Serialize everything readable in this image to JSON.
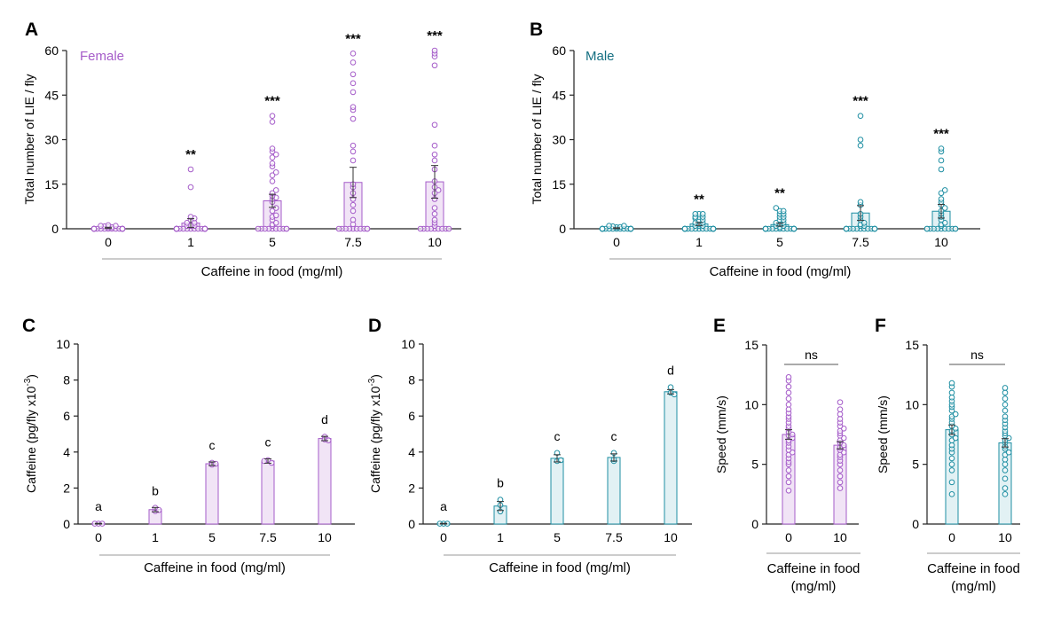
{
  "colors": {
    "female": "#a55cc9",
    "female_fill": "#f1e4f6",
    "male": "#1f8fa3",
    "male_fill": "#e2f1f4",
    "male_label": "#156f82",
    "axis": "#222222"
  },
  "chart_data": [
    {
      "panel": "A",
      "type": "bar",
      "sex": "female",
      "inset_label": "Female",
      "categories": [
        "0",
        "1",
        "5",
        "7.5",
        "10"
      ],
      "values": [
        0.3,
        1.9,
        9.4,
        15.6,
        15.8
      ],
      "sem": [
        0.2,
        1.5,
        2.2,
        5.1,
        5.5
      ],
      "significance": [
        "",
        "**",
        "***",
        "***",
        "***"
      ],
      "points": [
        [
          0,
          0,
          0,
          0,
          0,
          0,
          0,
          0,
          0,
          0,
          0,
          0,
          0,
          0,
          0,
          0,
          0,
          0,
          0,
          0,
          0.5,
          0.5,
          0.8,
          1,
          1,
          1.2
        ],
        [
          0,
          0,
          0,
          0,
          0,
          0,
          0,
          0,
          0,
          0,
          0,
          0,
          0,
          0,
          0,
          0,
          0,
          0,
          0,
          0,
          0,
          0,
          0,
          0,
          0,
          0,
          1,
          1,
          1,
          1.2,
          2,
          2,
          3,
          3.5,
          4,
          14,
          20
        ],
        [
          0,
          0,
          0,
          0,
          0,
          0,
          0,
          0,
          0,
          0,
          1,
          1.5,
          2,
          3,
          4,
          4.5,
          6,
          7,
          9,
          10,
          10.5,
          11,
          12,
          13,
          16,
          18,
          19,
          21,
          22,
          24,
          25,
          26,
          27,
          36,
          38
        ],
        [
          0,
          0,
          0,
          0,
          0,
          0,
          0,
          0,
          0,
          0,
          1.5,
          3,
          6,
          8,
          10,
          12,
          14,
          15,
          23,
          26,
          28,
          37,
          40,
          41,
          46,
          49,
          52,
          56,
          59
        ],
        [
          0,
          0,
          0,
          0,
          0,
          0,
          0,
          0,
          0,
          1,
          2,
          3,
          5,
          7,
          10,
          12,
          13,
          14,
          16,
          20,
          23,
          25,
          28,
          35,
          55,
          58,
          59,
          60
        ]
      ],
      "xlabel": "Caffeine in food (mg/ml)",
      "ylabel": "Total number of LIE / fly",
      "ylim": [
        0,
        60
      ],
      "yticks": [
        "0",
        "15",
        "30",
        "45",
        "60"
      ]
    },
    {
      "panel": "B",
      "type": "bar",
      "sex": "male",
      "inset_label": "Male",
      "categories": [
        "0",
        "1",
        "5",
        "7.5",
        "10"
      ],
      "values": [
        0.2,
        1.6,
        1.4,
        5.3,
        5.9
      ],
      "sem": [
        0.15,
        0.5,
        0.5,
        2.5,
        2.3
      ],
      "significance": [
        "",
        "**",
        "**",
        "***",
        "***"
      ],
      "points": [
        [
          0,
          0,
          0,
          0,
          0,
          0,
          0,
          0,
          0,
          0,
          0,
          0,
          0,
          0,
          0,
          0,
          0,
          0,
          0,
          0,
          0.5,
          0.6,
          0.8,
          1,
          1
        ],
        [
          0,
          0,
          0,
          0,
          0,
          0,
          0,
          0,
          0,
          0,
          0,
          0,
          0,
          0,
          0,
          0,
          0,
          0,
          0,
          0,
          1,
          1,
          1,
          1.5,
          2,
          2,
          3,
          3,
          3.5,
          4,
          4,
          4,
          5,
          5,
          5
        ],
        [
          0,
          0,
          0,
          0,
          0,
          0,
          0,
          0,
          0,
          0,
          0,
          0,
          0,
          0,
          0,
          0,
          0,
          0,
          0,
          0,
          0.5,
          1,
          1,
          1.5,
          2,
          2,
          3,
          3,
          4,
          4,
          5,
          5,
          6,
          6,
          7
        ],
        [
          0,
          0,
          0,
          0,
          0,
          0,
          0,
          0,
          0,
          0,
          0,
          0,
          0,
          0,
          0,
          1,
          1,
          1.5,
          2,
          3,
          4,
          5,
          8,
          9,
          28,
          30,
          38
        ],
        [
          0,
          0,
          0,
          0,
          0,
          0,
          0,
          0,
          0,
          0,
          0,
          1,
          1.5,
          2,
          3,
          4,
          5,
          6,
          7,
          8,
          9,
          10,
          12,
          13,
          20,
          23,
          26,
          27
        ]
      ],
      "xlabel": "Caffeine in food (mg/ml)",
      "ylabel": "Total number of LIE / fly",
      "ylim": [
        0,
        60
      ],
      "yticks": [
        "0",
        "15",
        "30",
        "45",
        "60"
      ]
    },
    {
      "panel": "C",
      "type": "bar",
      "sex": "female",
      "categories": [
        "0",
        "1",
        "5",
        "7.5",
        "10"
      ],
      "values": [
        0.02,
        0.8,
        3.35,
        3.5,
        4.75
      ],
      "sem": [
        0.02,
        0.12,
        0.1,
        0.12,
        0.12
      ],
      "letters": [
        "a",
        "b",
        "c",
        "c",
        "d"
      ],
      "points": [
        [
          0.02,
          0.02,
          0.02
        ],
        [
          0.72,
          0.9,
          0.78
        ],
        [
          3.4,
          3.3,
          3.35
        ],
        [
          3.55,
          3.4,
          3.5
        ],
        [
          4.85,
          4.7,
          4.65
        ]
      ],
      "xlabel": "Caffeine in food (mg/ml)",
      "ylabel": "Caffeine (pg/fly x10",
      "ylabel_exponent": "-3",
      "ylabel_close": ")",
      "ylim": [
        0,
        10
      ],
      "yticks": [
        "0",
        "2",
        "4",
        "6",
        "8",
        "10"
      ]
    },
    {
      "panel": "D",
      "type": "bar",
      "sex": "male",
      "categories": [
        "0",
        "1",
        "5",
        "7.5",
        "10"
      ],
      "values": [
        0.02,
        1.0,
        3.65,
        3.7,
        7.35
      ],
      "sem": [
        0.02,
        0.25,
        0.2,
        0.2,
        0.12
      ],
      "letters": [
        "a",
        "b",
        "c",
        "c",
        "d"
      ],
      "points": [
        [
          0.02,
          0.02,
          0.02
        ],
        [
          0.7,
          1.35,
          1.05
        ],
        [
          3.5,
          3.95,
          3.55
        ],
        [
          3.5,
          3.95,
          3.6
        ],
        [
          7.6,
          7.3,
          7.2
        ]
      ],
      "xlabel": "Caffeine in food (mg/ml)",
      "ylabel": "Caffeine (pg/fly x10",
      "ylabel_exponent": "-3",
      "ylabel_close": ")",
      "ylim": [
        0,
        10
      ],
      "yticks": [
        "0",
        "2",
        "4",
        "6",
        "8",
        "10"
      ]
    },
    {
      "panel": "E",
      "type": "bar",
      "sex": "female",
      "categories": [
        "0",
        "10"
      ],
      "values": [
        7.5,
        6.6
      ],
      "sem": [
        0.4,
        0.3
      ],
      "comparison": "ns",
      "points": [
        [
          2.8,
          3.5,
          4,
          4.5,
          5,
          5.2,
          5.5,
          5.8,
          6,
          6.2,
          6.5,
          6.8,
          7,
          7.2,
          7.4,
          7.5,
          7.7,
          8,
          8.2,
          8.5,
          8.8,
          9,
          9.3,
          9.6,
          10,
          10.5,
          11,
          11.5,
          12,
          12.3
        ],
        [
          3,
          3.5,
          4,
          4.5,
          5,
          5.3,
          5.6,
          5.8,
          6,
          6.2,
          6.4,
          6.6,
          6.8,
          7,
          7.2,
          7.4,
          7.6,
          7.8,
          8,
          8.2,
          8.5,
          8.8,
          9.2,
          9.6,
          10.2
        ]
      ],
      "xlabel_line1": "Caffeine in food",
      "xlabel_line2": "(mg/ml)",
      "ylabel": "Speed (mm/s)",
      "ylim": [
        0,
        15
      ],
      "yticks": [
        "0",
        "5",
        "10",
        "15"
      ]
    },
    {
      "panel": "F",
      "type": "bar",
      "sex": "male",
      "categories": [
        "0",
        "10"
      ],
      "values": [
        7.9,
        6.8
      ],
      "sem": [
        0.4,
        0.35
      ],
      "comparison": "ns",
      "points": [
        [
          2.5,
          3.5,
          4.5,
          5,
          5.5,
          6,
          6.3,
          6.6,
          7,
          7.2,
          7.5,
          7.8,
          8,
          8.2,
          8.5,
          8.8,
          9,
          9.2,
          9.5,
          9.8,
          10,
          10.3,
          10.6,
          11,
          11.5,
          11.8
        ],
        [
          2.5,
          3,
          3.8,
          4.5,
          5,
          5.4,
          5.8,
          6,
          6.3,
          6.5,
          6.8,
          7,
          7.2,
          7.4,
          7.6,
          7.8,
          8.1,
          8.4,
          8.7,
          9,
          9.5,
          10,
          10.5,
          11,
          11.4
        ]
      ],
      "xlabel_line1": "Caffeine in food",
      "xlabel_line2": "(mg/ml)",
      "ylabel": "Speed (mm/s)",
      "ylim": [
        0,
        15
      ],
      "yticks": [
        "0",
        "5",
        "10",
        "15"
      ]
    }
  ]
}
